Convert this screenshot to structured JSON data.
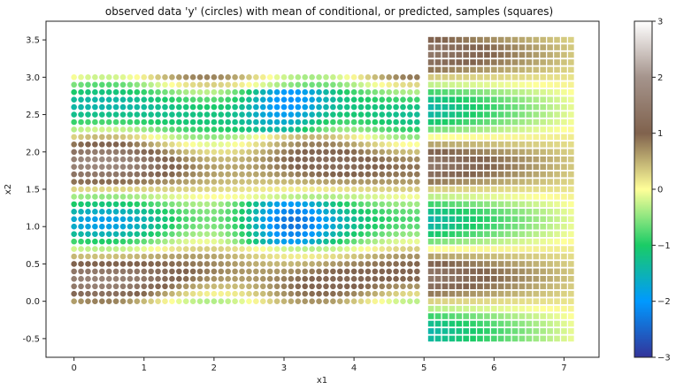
{
  "chart_data": {
    "type": "scatter",
    "title": "observed data 'y' (circles) with mean of conditional, or predicted, samples (squares)",
    "xlabel": "x1",
    "ylabel": "x2",
    "xlim": [
      -0.4,
      7.5
    ],
    "ylim": [
      -0.75,
      3.75
    ],
    "x_ticks": [
      0,
      1,
      2,
      3,
      4,
      5,
      6,
      7
    ],
    "y_ticks": [
      -0.5,
      0.0,
      0.5,
      1.0,
      1.5,
      2.0,
      2.5,
      3.0,
      3.5
    ],
    "observed": {
      "marker": "circle",
      "x_range": [
        0.0,
        4.9
      ],
      "x_step": 0.1,
      "y_range": [
        0.0,
        3.0
      ],
      "y_step": 0.1
    },
    "predicted": {
      "marker": "square",
      "x_range": [
        5.1,
        7.1
      ],
      "x_step": 0.1,
      "y_range": [
        -0.5,
        3.5
      ],
      "y_step": 0.1
    },
    "colorbar": {
      "range": [
        -3,
        3
      ],
      "ticks": [
        -3,
        -2,
        -1,
        0,
        1,
        2,
        3
      ],
      "colormap": "terrain",
      "colormap_stops": [
        {
          "value": -3.0,
          "color": "#333399"
        },
        {
          "value": -2.0,
          "color": "#0099ff"
        },
        {
          "value": -1.0,
          "color": "#1acc66"
        },
        {
          "value": 0.0,
          "color": "#ffff99"
        },
        {
          "value": 1.0,
          "color": "#80624d"
        },
        {
          "value": 2.0,
          "color": "#a5948c"
        },
        {
          "value": 3.0,
          "color": "#ffffff"
        }
      ]
    }
  }
}
